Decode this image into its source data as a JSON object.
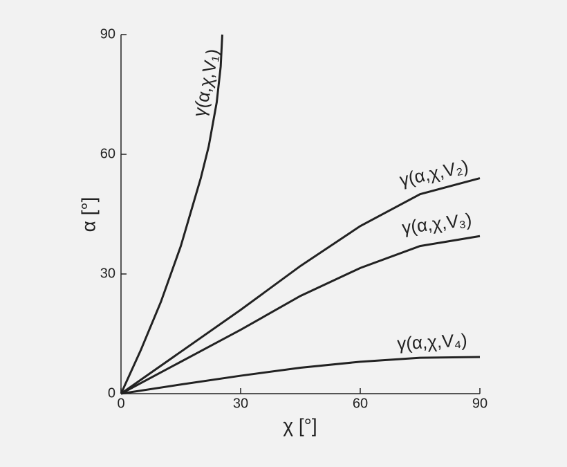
{
  "chart_data": {
    "type": "line",
    "x_label": "χ [°]",
    "y_label": "α [°]",
    "xlim": [
      0,
      90
    ],
    "ylim": [
      0,
      90
    ],
    "xticks": [
      0,
      30,
      60,
      90
    ],
    "yticks": [
      0,
      30,
      60,
      90
    ],
    "series": [
      {
        "name": "γ(α,χ,V₁)",
        "color": "#222222",
        "x": [
          0,
          5,
          10,
          15,
          20,
          22,
          24,
          25,
          25.4
        ],
        "values": [
          0,
          11,
          23,
          37,
          54,
          62,
          73,
          82,
          90
        ]
      },
      {
        "name": "γ(α,χ,V₂)",
        "color": "#222222",
        "x": [
          0,
          15,
          30,
          45,
          60,
          75,
          90
        ],
        "values": [
          0,
          10.5,
          21,
          32,
          42,
          50,
          54
        ]
      },
      {
        "name": "γ(α,χ,V₃)",
        "color": "#222222",
        "x": [
          0,
          15,
          30,
          45,
          60,
          75,
          90
        ],
        "values": [
          0,
          8,
          16,
          24.5,
          31.5,
          37,
          39.5
        ]
      },
      {
        "name": "γ(α,χ,V₄)",
        "color": "#222222",
        "x": [
          0,
          15,
          30,
          45,
          60,
          75,
          90
        ],
        "values": [
          0,
          2.3,
          4.5,
          6.5,
          8,
          9,
          9.2
        ]
      }
    ]
  }
}
